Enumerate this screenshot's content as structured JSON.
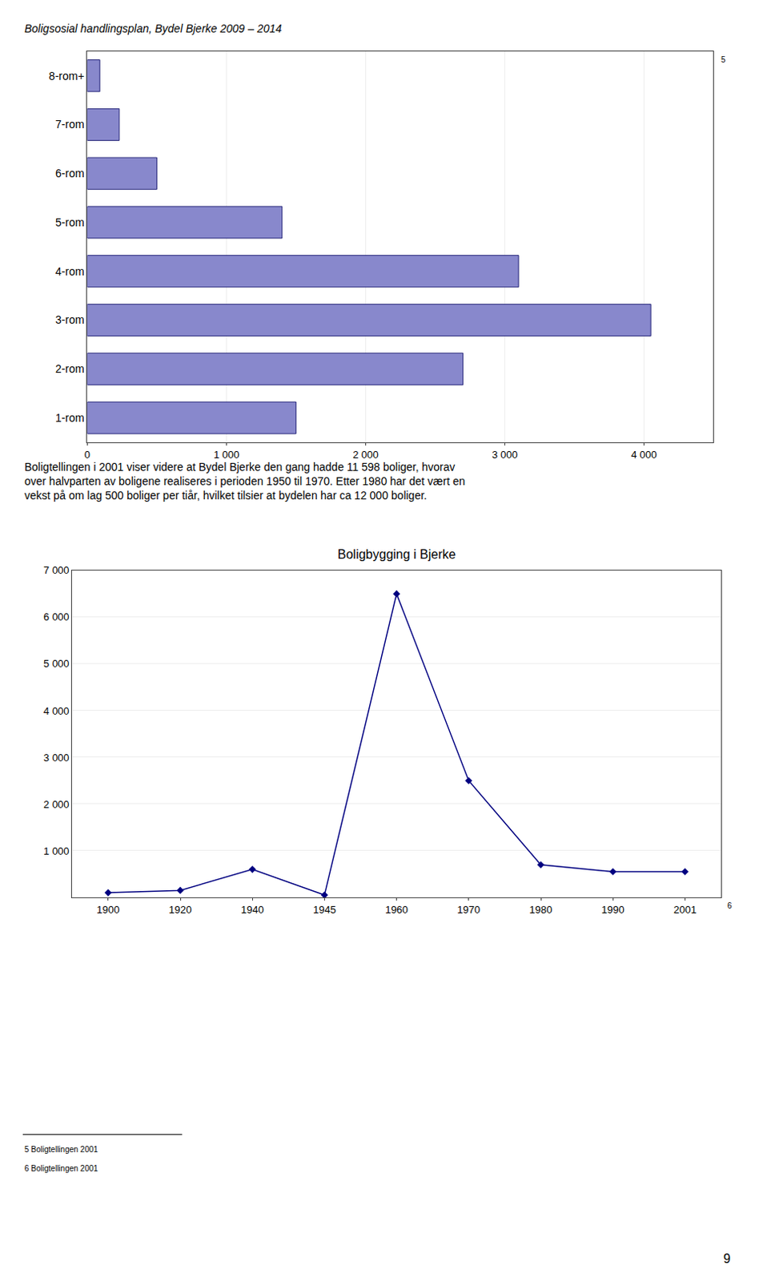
{
  "title": "Boligsosial handlingsplan, Bydel Bjerke 2009 – 2014",
  "text": "Boligtellingen i 2001 viser videre at Bydel Bjerke den gang hadde 11 598 boliger, hvorav\nover halvparten av boligene realiseres i perioden 1950 til 1970. Etter 1980 har det vært en\nvekst på om lag 500 boliger per tiår, hvilket tilsier at bydelen har ca 12 000 boliger.",
  "footnotes": [
    "5 Boligtellingen 2001",
    "6 Boligtellingen 2001"
  ],
  "page_number": "9",
  "chart_data": [
    {
      "type": "bar",
      "orientation": "horizontal",
      "categories": [
        "1-rom",
        "2-rom",
        "3-rom",
        "4-rom",
        "5-rom",
        "6-rom",
        "7-rom",
        "8-rom+"
      ],
      "values": [
        1500,
        2700,
        4050,
        3100,
        1400,
        500,
        230,
        90
      ],
      "color": "#8888cc",
      "xlim": [
        0,
        4500
      ],
      "xticks": [
        0,
        {
          "value": 1000,
          "label": "1 000"
        },
        {
          "value": 2000,
          "label": "2 000"
        },
        {
          "value": 3000,
          "label": "3 000"
        },
        {
          "value": 4000,
          "label": "4 000"
        }
      ],
      "grid": true,
      "annotations": [
        "5"
      ]
    },
    {
      "type": "line",
      "title": "Boligbygging i Bjerke",
      "categories": [
        "1900",
        "1920",
        "1940",
        "1945",
        "1960",
        "1970",
        "1980",
        "1990",
        "2001"
      ],
      "values": [
        100,
        150,
        600,
        50,
        6500,
        2500,
        700,
        550,
        550
      ],
      "color": "#000080",
      "marker": "diamond",
      "ylim": [
        0,
        7000
      ],
      "yticks": [
        {
          "value": 1000,
          "label": "1 000"
        },
        {
          "value": 2000,
          "label": "2 000"
        },
        {
          "value": 3000,
          "label": "3 000"
        },
        {
          "value": 4000,
          "label": "4 000"
        },
        {
          "value": 5000,
          "label": "5 000"
        },
        {
          "value": 6000,
          "label": "6 000"
        },
        {
          "value": 7000,
          "label": "7 000"
        }
      ],
      "grid": true,
      "annotations": [
        "6"
      ]
    }
  ]
}
